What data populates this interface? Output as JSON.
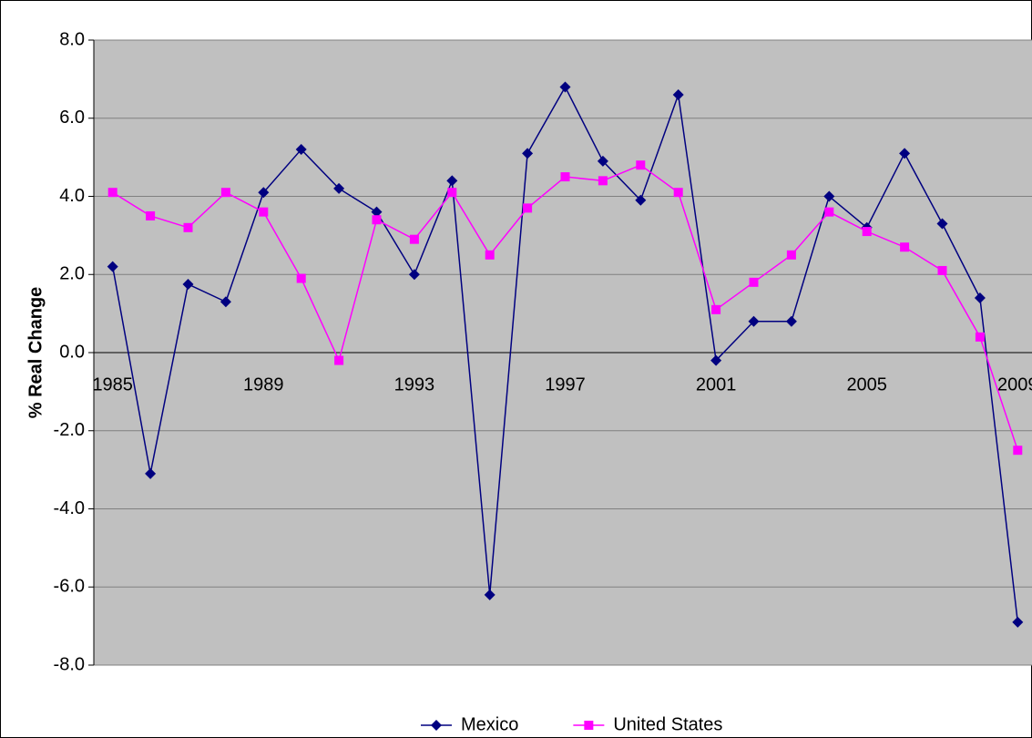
{
  "chart_data": {
    "type": "line",
    "ylabel": "% Real Change",
    "x": [
      1985,
      1986,
      1987,
      1988,
      1989,
      1990,
      1991,
      1992,
      1993,
      1994,
      1995,
      1996,
      1997,
      1998,
      1999,
      2000,
      2001,
      2002,
      2003,
      2004,
      2005,
      2006,
      2007,
      2008,
      2009
    ],
    "xlim": [
      1984.5,
      2009.5
    ],
    "xticks": [
      1985,
      1989,
      1993,
      1997,
      2001,
      2005,
      2009
    ],
    "ylim": [
      -8,
      8
    ],
    "yticks": [
      {
        "value": -8,
        "label": "-8.0"
      },
      {
        "value": -6,
        "label": "-6.0"
      },
      {
        "value": -4,
        "label": "-4.0"
      },
      {
        "value": -2,
        "label": "-2.0"
      },
      {
        "value": 0,
        "label": "0.0"
      },
      {
        "value": 2,
        "label": "2.0"
      },
      {
        "value": 4,
        "label": "4.0"
      },
      {
        "value": 6,
        "label": "6.0"
      },
      {
        "value": 8,
        "label": "8.0"
      }
    ],
    "grid": true,
    "legend": "bottom",
    "series": [
      {
        "name": "Mexico",
        "color": "#000080",
        "marker": "diamond",
        "values": [
          2.2,
          -3.1,
          1.75,
          1.3,
          4.1,
          5.2,
          4.2,
          3.6,
          2.0,
          4.4,
          -6.2,
          5.1,
          6.8,
          4.9,
          3.9,
          6.6,
          -0.2,
          0.8,
          0.8,
          4.0,
          3.2,
          5.1,
          3.3,
          1.4,
          -6.9
        ]
      },
      {
        "name": "United States",
        "color": "#ff00ff",
        "marker": "square",
        "values": [
          4.1,
          3.5,
          3.2,
          4.1,
          3.6,
          1.9,
          -0.2,
          3.4,
          2.9,
          4.1,
          2.5,
          3.7,
          4.5,
          4.4,
          4.8,
          4.1,
          1.1,
          1.8,
          2.5,
          3.6,
          3.1,
          2.7,
          2.1,
          0.4,
          -2.5
        ]
      }
    ]
  }
}
